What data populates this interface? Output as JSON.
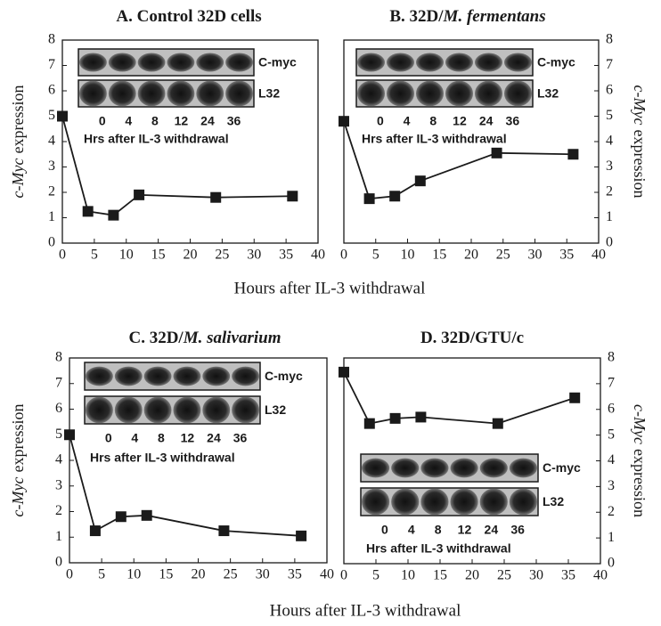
{
  "chart_data": [
    {
      "type": "line",
      "title": "A. Control 32D cells",
      "ylabel_italic": "c-Myc",
      "ylabel": "expression",
      "xlabel": "Hours after IL-3 withdrawal",
      "yaxis": "left",
      "x": [
        0,
        4,
        8,
        12,
        24,
        36
      ],
      "values": [
        5.0,
        1.25,
        1.1,
        1.9,
        1.8,
        1.85
      ],
      "color": "#1a1a1a",
      "xlim": [
        0,
        40
      ],
      "xticks": [
        0,
        5,
        10,
        15,
        20,
        25,
        30,
        35,
        40
      ],
      "ylim": [
        0,
        8
      ],
      "yticks": [
        0,
        1,
        2,
        3,
        4,
        5,
        6,
        7,
        8
      ],
      "inset": {
        "bands": [
          "C-myc",
          "L32"
        ],
        "lanes": [
          0,
          4,
          8,
          12,
          24,
          36
        ],
        "caption": "Hrs after IL-3 withdrawal"
      }
    },
    {
      "type": "line",
      "title": "B. 32D/",
      "title_italic": "M. fermentans",
      "ylabel_italic": "c-Myc",
      "ylabel": "expression",
      "yaxis": "right",
      "x": [
        0,
        4,
        8,
        12,
        24,
        36
      ],
      "values": [
        4.8,
        1.75,
        1.85,
        2.45,
        3.55,
        3.5
      ],
      "color": "#1a1a1a",
      "xlim": [
        0,
        40
      ],
      "xticks": [
        0,
        5,
        10,
        15,
        20,
        25,
        30,
        35,
        40
      ],
      "ylim": [
        0,
        8
      ],
      "yticks": [
        0,
        1,
        2,
        3,
        4,
        5,
        6,
        7,
        8
      ],
      "inset": {
        "bands": [
          "C-myc",
          "L32"
        ],
        "lanes": [
          0,
          4,
          8,
          12,
          24,
          36
        ],
        "caption": "Hrs after IL-3 withdrawal"
      }
    },
    {
      "type": "line",
      "title": "C. 32D/",
      "title_italic": "M. salivarium",
      "ylabel_italic": "c-Myc",
      "ylabel": "expression",
      "xlabel": "Hours after IL-3 withdrawal",
      "yaxis": "left",
      "x": [
        0,
        4,
        8,
        12,
        24,
        36
      ],
      "values": [
        5.0,
        1.25,
        1.8,
        1.85,
        1.25,
        1.05
      ],
      "color": "#1a1a1a",
      "xlim": [
        0,
        40
      ],
      "xticks": [
        0,
        5,
        10,
        15,
        20,
        25,
        30,
        35,
        40
      ],
      "ylim": [
        0,
        8
      ],
      "yticks": [
        0,
        1,
        2,
        3,
        4,
        5,
        6,
        7,
        8
      ],
      "inset": {
        "bands": [
          "C-myc",
          "L32"
        ],
        "lanes": [
          0,
          4,
          8,
          12,
          24,
          36
        ],
        "caption": "Hrs after IL-3 withdrawal"
      }
    },
    {
      "type": "line",
      "title": "D. 32D/GTU/c",
      "ylabel_italic": "c-Myc",
      "ylabel": "expression",
      "yaxis": "right",
      "x": [
        0,
        4,
        8,
        12,
        24,
        36
      ],
      "values": [
        7.45,
        5.45,
        5.65,
        5.7,
        5.45,
        6.45
      ],
      "color": "#1a1a1a",
      "xlim": [
        0,
        40
      ],
      "xticks": [
        0,
        5,
        10,
        15,
        20,
        25,
        30,
        35,
        40
      ],
      "ylim": [
        0,
        8
      ],
      "yticks": [
        0,
        1,
        2,
        3,
        4,
        5,
        6,
        7,
        8
      ],
      "inset": {
        "bands": [
          "C-myc",
          "L32"
        ],
        "lanes": [
          0,
          4,
          8,
          12,
          24,
          36
        ],
        "caption": "Hrs after IL-3 withdrawal"
      }
    }
  ]
}
